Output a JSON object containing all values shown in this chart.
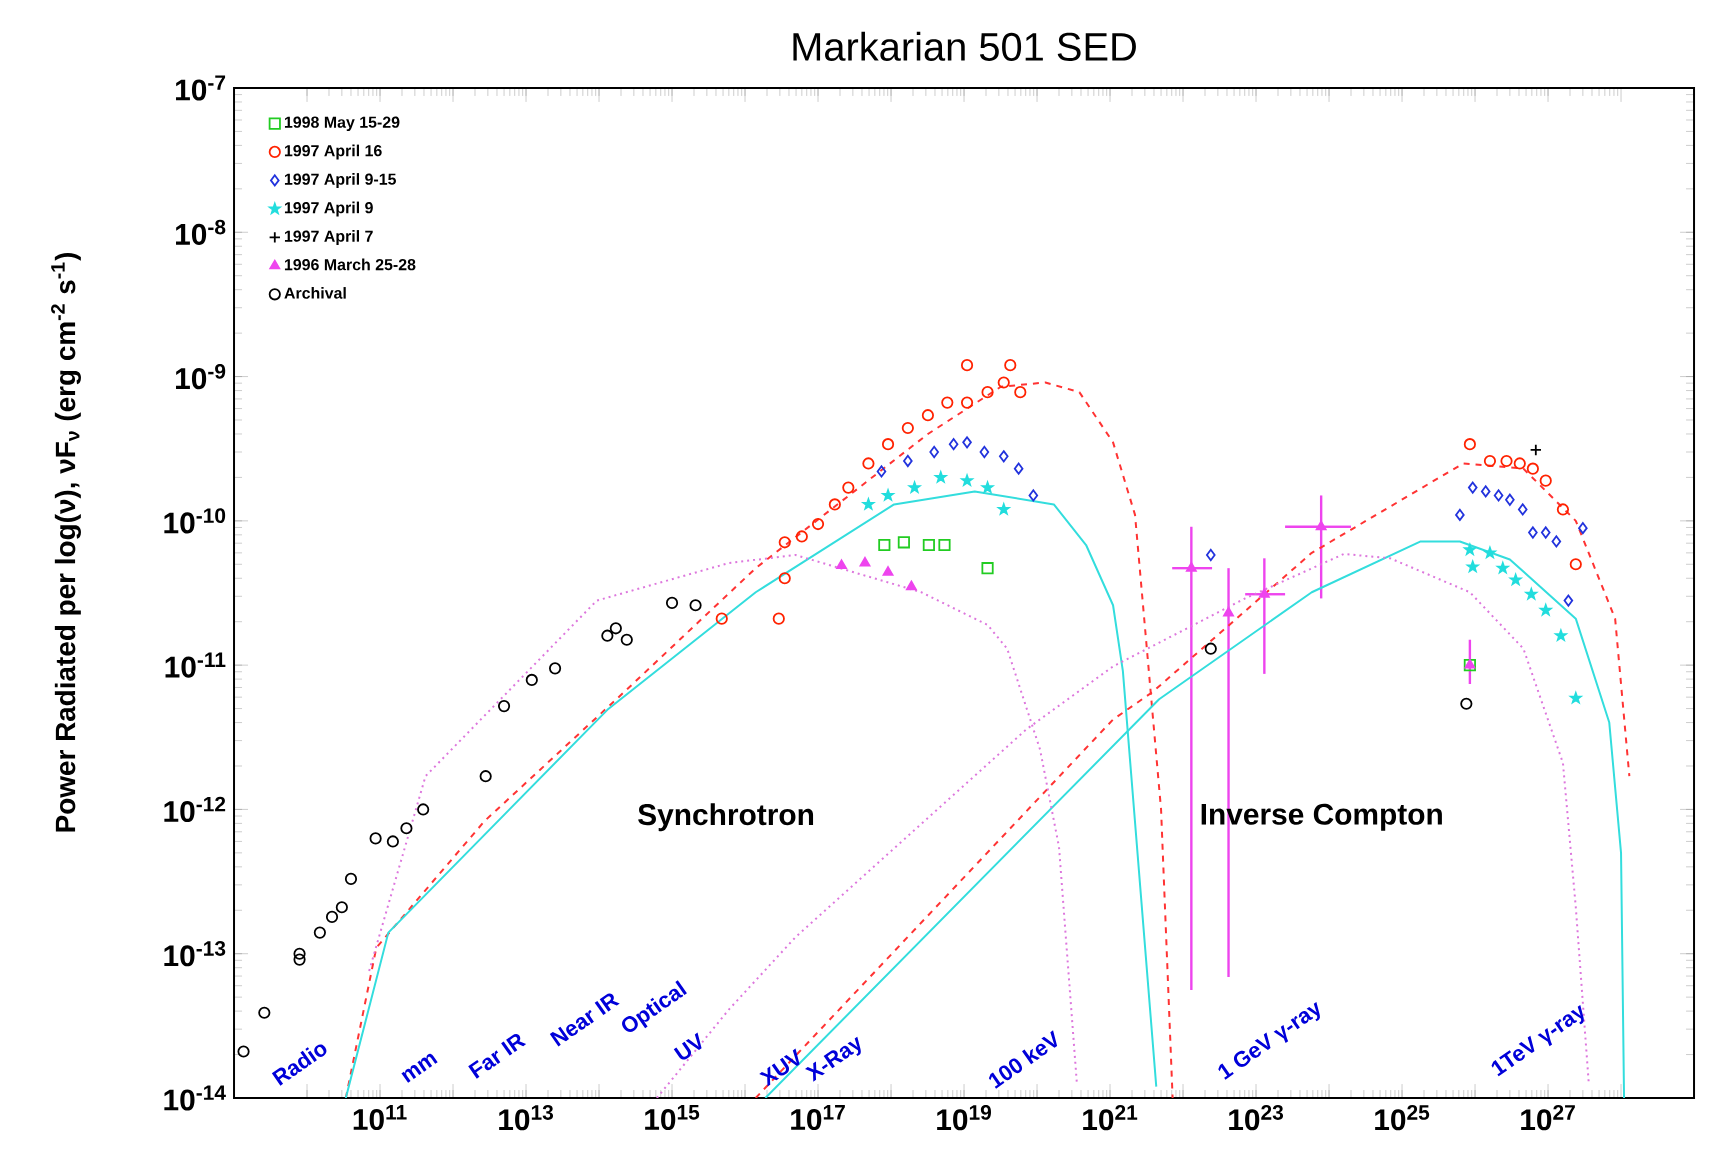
{
  "chart_data": {
    "type": "scatter",
    "title": "Markarian 501 SED",
    "ylabel": "Power Radiated per log(ν),   νF$_{ν}$ (erg cm$^{-2}$ s$^{-1}$)",
    "log": "xy",
    "xlim": [
      1000000000.0,
      1e+29
    ],
    "ylim": [
      1e-14,
      1e-07
    ],
    "legend": "top left",
    "xticks": [
      {
        "value": 10000000000.0,
        "label": null
      },
      {
        "value": 100000000000.0,
        "label": "10$^{11}$"
      },
      {
        "value": 1000000000000.0,
        "label": null
      },
      {
        "value": 10000000000000.0,
        "label": "10$^{13}$"
      },
      {
        "value": 100000000000000.0,
        "label": null
      },
      {
        "value": 1000000000000000.0,
        "label": "10$^{15}$"
      },
      {
        "value": 1e+16,
        "label": null
      },
      {
        "value": 1e+17,
        "label": "10$^{17}$"
      },
      {
        "value": 1e+18,
        "label": null
      },
      {
        "value": 1e+19,
        "label": "10$^{19}$"
      },
      {
        "value": 1e+20,
        "label": null
      },
      {
        "value": 1e+21,
        "label": "10$^{21}$"
      },
      {
        "value": 1e+22,
        "label": null
      },
      {
        "value": 1e+23,
        "label": "10$^{23}$"
      },
      {
        "value": 1e+24,
        "label": null
      },
      {
        "value": 1e+25,
        "label": "10$^{25}$"
      },
      {
        "value": 1e+26,
        "label": null
      },
      {
        "value": 1e+27,
        "label": "10$^{27}$"
      },
      {
        "value": 1e+28,
        "label": null
      }
    ],
    "yticks": [
      {
        "value": 1e-14,
        "label": "10$^{-14}$"
      },
      {
        "value": 1e-13,
        "label": "10$^{-13}$"
      },
      {
        "value": 1e-12,
        "label": "10$^{-12}$"
      },
      {
        "value": 1e-11,
        "label": "10$^{-11}$"
      },
      {
        "value": 1e-10,
        "label": "10$^{-10}$"
      },
      {
        "value": 1e-09,
        "label": "10$^{-9}$"
      },
      {
        "value": 1e-08,
        "label": "10$^{-8}$"
      },
      {
        "value": 1e-07,
        "label": "10$^{-7}$"
      }
    ],
    "annotations": [
      "Synchrotron",
      "Inverse Compton",
      "Radio",
      "mm",
      "Far IR",
      "Near IR",
      "Optical",
      "UV",
      "XUV",
      "X-Ray",
      "100 keV",
      "1 GeV γ-ray",
      "1TeV γ-ray"
    ],
    "series": [
      {
        "name": "1998 May 15-29",
        "marker": "square",
        "color": "#22cc22",
        "x": [
          8.1e+17,
          1.5e+18,
          3.3e+18,
          5.4e+18,
          2.1e+19,
          8.5e+25
        ],
        "values": [
          6.8e-11,
          7.1e-11,
          6.8e-11,
          6.8e-11,
          4.7e-11,
          1e-11
        ]
      },
      {
        "name": "1997 April 16",
        "marker": "circle",
        "color": "#ff2200",
        "x": [
          4800000000000000.0,
          2.9e+16,
          3.5e+16,
          3.5e+16,
          6e+16,
          1e+17,
          1.7e+17,
          2.6e+17,
          4.9e+17,
          9.1e+17,
          1.7e+18,
          3.2e+18,
          5.9e+18,
          1.1e+19,
          1.1e+19,
          2.1e+19,
          4.3e+19,
          3.5e+19,
          5.9e+19,
          8.5e+25,
          1.6e+26,
          2.7e+26,
          4.1e+26,
          6.2e+26,
          9.3e+26,
          1.6e+27,
          2.4e+27
        ],
        "values": [
          2.1e-11,
          2.1e-11,
          4e-11,
          7.1e-11,
          7.8e-11,
          9.5e-11,
          1.3e-10,
          1.7e-10,
          2.5e-10,
          3.4e-10,
          4.4e-10,
          5.4e-10,
          6.6e-10,
          1.2e-09,
          6.6e-10,
          7.8e-10,
          1.2e-09,
          9.1e-10,
          7.8e-10,
          3.4e-10,
          2.6e-10,
          2.6e-10,
          2.5e-10,
          2.3e-10,
          1.9e-10,
          1.2e-10,
          5e-11
        ]
      },
      {
        "name": "1997 April 9-15",
        "marker": "diamond",
        "color": "#2233dd",
        "x": [
          7.4e+17,
          1.7e+18,
          3.9e+18,
          7.2e+18,
          1.1e+19,
          1.9e+19,
          3.5e+19,
          5.6e+19,
          8.9e+19,
          2.4e+22,
          6.2e+25,
          9.3e+25,
          1.4e+26,
          2.1e+26,
          3e+26,
          4.5e+26,
          6.2e+26,
          9.3e+26,
          1.3e+27,
          1.9e+27,
          3e+27
        ],
        "values": [
          2.2e-10,
          2.6e-10,
          3e-10,
          3.4e-10,
          3.5e-10,
          3e-10,
          2.8e-10,
          2.3e-10,
          1.5e-10,
          5.8e-11,
          1.1e-10,
          1.7e-10,
          1.6e-10,
          1.5e-10,
          1.4e-10,
          1.2e-10,
          8.3e-11,
          8.3e-11,
          7.2e-11,
          2.8e-11,
          8.9e-11
        ]
      },
      {
        "name": "1997 April 9",
        "marker": "star",
        "color": "#22dddd",
        "x": [
          4.9e+17,
          9.1e+17,
          2.1e+18,
          4.8e+18,
          1.1e+19,
          2.1e+19,
          3.5e+19,
          8.5e+25,
          9.3e+25,
          1.6e+26,
          2.4e+26,
          3.6e+26,
          5.9e+26,
          9.3e+26,
          1.5e+27,
          2.4e+27
        ],
        "values": [
          1.3e-10,
          1.5e-10,
          1.7e-10,
          2e-10,
          1.9e-10,
          1.7e-10,
          1.2e-10,
          6.3e-11,
          4.8e-11,
          6e-11,
          4.7e-11,
          3.9e-11,
          3.1e-11,
          2.4e-11,
          1.6e-11,
          5.9e-12
        ]
      },
      {
        "name": "1997 April 7",
        "marker": "cross",
        "color": "#000000",
        "x": [
          6.8e+26
        ],
        "values": [
          3.1e-10
        ]
      },
      {
        "name": "1996 March 25-28",
        "marker": "triangle",
        "color": "#ee44ee",
        "x": [
          2.1e+17,
          4.4e+17,
          9.1e+17,
          1.9e+18,
          1.3e+22,
          4.2e+22,
          1.3e+23,
          7.8e+23,
          8.5e+25
        ],
        "values": [
          4.9e-11,
          5.1e-11,
          4.4e-11,
          3.5e-11,
          4.7e-11,
          2.3e-11,
          3.1e-11,
          9.1e-11,
          1e-11
        ],
        "errors": [
          null,
          null,
          null,
          null,
          [
            5.6e-14,
            9.1e-11
          ],
          [
            6.9e-14,
            4.7e-11
          ],
          [
            8.7e-12,
            5.5e-11
          ],
          [
            2.9e-11,
            1.5e-10
          ],
          [
            7.4e-12,
            1.5e-11
          ]
        ],
        "xerrors": [
          null,
          null,
          null,
          null,
          [
            7.1e+21,
            2.5e+22
          ],
          null,
          [
            7.1e+22,
            2.5e+23
          ],
          [
            2.5e+23,
            2e+24
          ],
          null
        ]
      },
      {
        "name": "Archival",
        "marker": "circle",
        "color": "#000000",
        "x": [
          1350000000.0,
          2600000000.0,
          7900000000.0,
          7900000000.0,
          15000000000.0,
          22000000000.0,
          30000000000.0,
          40000000000.0,
          87000000000.0,
          150000000000.0,
          230000000000.0,
          390000000000.0,
          2800000000000.0,
          5000000000000.0,
          12000000000000.0,
          25000000000000.0,
          130000000000000.0,
          170000000000000.0,
          240000000000000.0,
          1000000000000000.0,
          2100000000000000.0,
          2.4e+22,
          7.6e+25
        ],
        "values": [
          2.1e-14,
          3.9e-14,
          1e-13,
          9.1e-14,
          1.4e-13,
          1.8e-13,
          2.1e-13,
          3.3e-13,
          6.3e-13,
          6e-13,
          7.4e-13,
          1e-12,
          1.7e-12,
          5.2e-12,
          7.9e-12,
          9.5e-12,
          1.6e-11,
          1.8e-11,
          1.5e-11,
          2.7e-11,
          2.6e-11,
          1.3e-11,
          5.4e-12
        ]
      },
      {
        "type": "line",
        "line_style": "dashed",
        "color": "#ff3333",
        "x": [
          34000000000.0,
          89000000000.0,
          2700000000000.0,
          220000000000000.0,
          1.4e+16,
          3.2e+18,
          3.2e+19,
          1.3e+20,
          3.8e+20,
          1.1e+21,
          2.2e+21,
          5e+21,
          7.2e+21
        ],
        "values": [
          1e-14,
          1.1e-13,
          8.3e-13,
          6.5e-12,
          4.7e-11,
          4e-10,
          8.5e-10,
          9.1e-10,
          7.8e-10,
          3.5e-10,
          1.1e-10,
          1e-12,
          1e-14
        ]
      },
      {
        "type": "line",
        "line_style": "dashed",
        "color": "#ff3333",
        "x": [
          1.4e+16,
          1.1e+21,
          3.8e+21,
          5.8e+23,
          6.9e+25,
          4.6e+26,
          2.4e+27,
          8.3e+27,
          1.3e+28
        ],
        "values": [
          1e-14,
          4.2e-12,
          6.5e-12,
          6e-11,
          2.5e-10,
          2.3e-10,
          1e-10,
          2.1e-11,
          1.7e-12
        ]
      },
      {
        "type": "line",
        "line_style": "solid",
        "color": "#33dddd",
        "x": [
          34000000000.0,
          130000000000.0,
          130000000000000.0,
          1.4e+16,
          1.1e+18,
          1.4e+19,
          1.7e+20,
          4.7e+20,
          1.1e+21,
          1.5e+21,
          4.3e+21
        ],
        "values": [
          1e-14,
          1.4e-13,
          4.9e-12,
          3.2e-11,
          1.3e-10,
          1.6e-10,
          1.3e-10,
          6.8e-11,
          2.6e-11,
          9.1e-12,
          1.2e-14
        ]
      },
      {
        "type": "line",
        "line_style": "solid",
        "color": "#33dddd",
        "x": [
          1.9e+16,
          4.7e+21,
          5.8e+23,
          1.8e+25,
          6.2e+25,
          3e+26,
          2.4e+27,
          6.9e+27,
          1e+28,
          1.1e+28
        ],
        "values": [
          1e-14,
          5.8e-12,
          3.2e-11,
          7.2e-11,
          7.2e-11,
          5.4e-11,
          2.1e-11,
          4e-12,
          5e-13,
          1e-14
        ]
      },
      {
        "type": "line",
        "line_style": "dotted",
        "color": "#dd77dd",
        "x": [
          71000000000.0,
          420000000000.0,
          93000000000000.0,
          6000000000000000.0,
          4.9e+16,
          2.6e+18,
          2.1e+19,
          3.9e+19,
          1.1e+20,
          2e+20,
          3.5e+20
        ],
        "values": [
          7.6e-14,
          1.7e-12,
          2.8e-11,
          5.1e-11,
          5.8e-11,
          3.2e-11,
          1.9e-11,
          1.3e-11,
          2.6e-12,
          5.5e-13,
          1.3e-14
        ]
      },
      {
        "type": "line",
        "line_style": "dotted",
        "color": "#dd77dd",
        "x": [
          620000000000000.0,
          6000000000000000.0,
          4.9e+16,
          7.2e+19,
          1.1e+21,
          7.1e+22,
          1.6e+24,
          6.9e+24,
          8.5e+25,
          4.6e+26,
          1.6e+27,
          2.4e+27,
          3.6e+27
        ],
        "values": [
          1e-14,
          4.1e-14,
          1.3e-13,
          3.6e-12,
          9.8e-12,
          2.9e-11,
          5.9e-11,
          5.5e-11,
          3.2e-11,
          1.3e-11,
          2.1e-12,
          2.1e-13,
          1.3e-14
        ]
      }
    ]
  }
}
